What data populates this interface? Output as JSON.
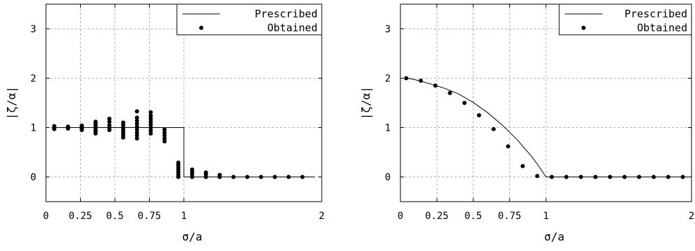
{
  "chart_data": [
    {
      "type": "scatter",
      "title": "",
      "xlabel": "σ/a",
      "ylabel": "|ζ/α|",
      "xlim": [
        0,
        2
      ],
      "ylim": [
        -0.5,
        3.5
      ],
      "xticks": [
        0,
        0.25,
        0.5,
        0.75,
        1,
        2
      ],
      "xtick_labels": [
        "0",
        "0.25",
        "0.5",
        "0.75",
        "1",
        "2"
      ],
      "yticks": [
        0,
        1,
        2,
        3
      ],
      "ytick_labels": [
        "0",
        "1",
        "2",
        "3"
      ],
      "grid": true,
      "legend_position": "top-right",
      "series": [
        {
          "name": "Prescribed",
          "style": "line",
          "x": [
            0.05,
            1.0,
            1.0,
            1.95
          ],
          "y": [
            1,
            1,
            0,
            0
          ]
        },
        {
          "name": "Obtained",
          "style": "points",
          "points": [
            [
              0.06,
              0.97
            ],
            [
              0.06,
              1.0
            ],
            [
              0.06,
              1.03
            ],
            [
              0.16,
              0.98
            ],
            [
              0.16,
              1.0
            ],
            [
              0.16,
              1.02
            ],
            [
              0.26,
              0.95
            ],
            [
              0.26,
              0.98
            ],
            [
              0.26,
              1.01
            ],
            [
              0.26,
              1.04
            ],
            [
              0.36,
              0.88
            ],
            [
              0.36,
              0.92
            ],
            [
              0.36,
              0.96
            ],
            [
              0.36,
              1.0
            ],
            [
              0.36,
              1.04
            ],
            [
              0.36,
              1.08
            ],
            [
              0.36,
              1.12
            ],
            [
              0.46,
              0.95
            ],
            [
              0.46,
              1.0
            ],
            [
              0.46,
              1.05
            ],
            [
              0.46,
              1.12
            ],
            [
              0.46,
              1.18
            ],
            [
              0.56,
              0.8
            ],
            [
              0.56,
              0.85
            ],
            [
              0.56,
              0.9
            ],
            [
              0.56,
              0.95
            ],
            [
              0.56,
              1.0
            ],
            [
              0.56,
              1.05
            ],
            [
              0.56,
              1.1
            ],
            [
              0.66,
              0.78
            ],
            [
              0.66,
              0.84
            ],
            [
              0.66,
              0.9
            ],
            [
              0.66,
              0.96
            ],
            [
              0.66,
              1.02
            ],
            [
              0.66,
              1.08
            ],
            [
              0.66,
              1.14
            ],
            [
              0.66,
              1.2
            ],
            [
              0.66,
              1.33
            ],
            [
              0.76,
              0.88
            ],
            [
              0.76,
              0.94
            ],
            [
              0.76,
              1.0
            ],
            [
              0.76,
              1.06
            ],
            [
              0.76,
              1.12
            ],
            [
              0.76,
              1.18
            ],
            [
              0.76,
              1.24
            ],
            [
              0.76,
              1.31
            ],
            [
              0.86,
              0.72
            ],
            [
              0.86,
              0.78
            ],
            [
              0.86,
              0.84
            ],
            [
              0.86,
              0.9
            ],
            [
              0.86,
              0.96
            ],
            [
              0.96,
              0.0
            ],
            [
              0.96,
              0.05
            ],
            [
              0.96,
              0.1
            ],
            [
              0.96,
              0.15
            ],
            [
              0.96,
              0.2
            ],
            [
              0.96,
              0.25
            ],
            [
              0.96,
              0.29
            ],
            [
              1.06,
              0.0
            ],
            [
              1.06,
              0.05
            ],
            [
              1.06,
              0.1
            ],
            [
              1.06,
              0.15
            ],
            [
              1.16,
              0.0
            ],
            [
              1.16,
              0.05
            ],
            [
              1.16,
              0.09
            ],
            [
              1.26,
              0.0
            ],
            [
              1.26,
              0.04
            ],
            [
              1.36,
              0.0
            ],
            [
              1.46,
              0.0
            ],
            [
              1.56,
              0.0
            ],
            [
              1.66,
              0.0
            ],
            [
              1.76,
              0.0
            ],
            [
              1.86,
              0.0
            ]
          ]
        }
      ]
    },
    {
      "type": "scatter",
      "title": "",
      "xlabel": "σ/a",
      "ylabel": "|ζ/α|",
      "xlim": [
        0,
        2
      ],
      "ylim": [
        -0.5,
        3.5
      ],
      "xticks": [
        0,
        0.25,
        0.5,
        0.75,
        1,
        2
      ],
      "xtick_labels": [
        "0",
        "0.25",
        "0.5",
        "0.75",
        "1",
        "2"
      ],
      "yticks": [
        0,
        1,
        2,
        3
      ],
      "ytick_labels": [
        "0",
        "1",
        "2",
        "3"
      ],
      "grid": true,
      "legend_position": "top-right",
      "series": [
        {
          "name": "Prescribed",
          "style": "line",
          "x": [
            0.05,
            0.1,
            0.2,
            0.3,
            0.4,
            0.5,
            0.6,
            0.7,
            0.8,
            0.9,
            0.95,
            1.0,
            2.0
          ],
          "y": [
            2.0,
            1.97,
            1.89,
            1.8,
            1.68,
            1.51,
            1.3,
            1.05,
            0.76,
            0.42,
            0.22,
            0.0,
            0.0
          ]
        },
        {
          "name": "Obtained",
          "style": "points",
          "points": [
            [
              0.04,
              2.0
            ],
            [
              0.14,
              1.95
            ],
            [
              0.24,
              1.85
            ],
            [
              0.34,
              1.7
            ],
            [
              0.44,
              1.5
            ],
            [
              0.54,
              1.25
            ],
            [
              0.64,
              0.97
            ],
            [
              0.74,
              0.62
            ],
            [
              0.84,
              0.22
            ],
            [
              0.94,
              0.02
            ],
            [
              1.04,
              0.0
            ],
            [
              1.14,
              0.0
            ],
            [
              1.24,
              0.0
            ],
            [
              1.34,
              0.0
            ],
            [
              1.44,
              0.0
            ],
            [
              1.54,
              0.0
            ],
            [
              1.64,
              0.0
            ],
            [
              1.74,
              0.0
            ],
            [
              1.84,
              0.0
            ],
            [
              1.94,
              0.0
            ]
          ]
        }
      ]
    }
  ]
}
